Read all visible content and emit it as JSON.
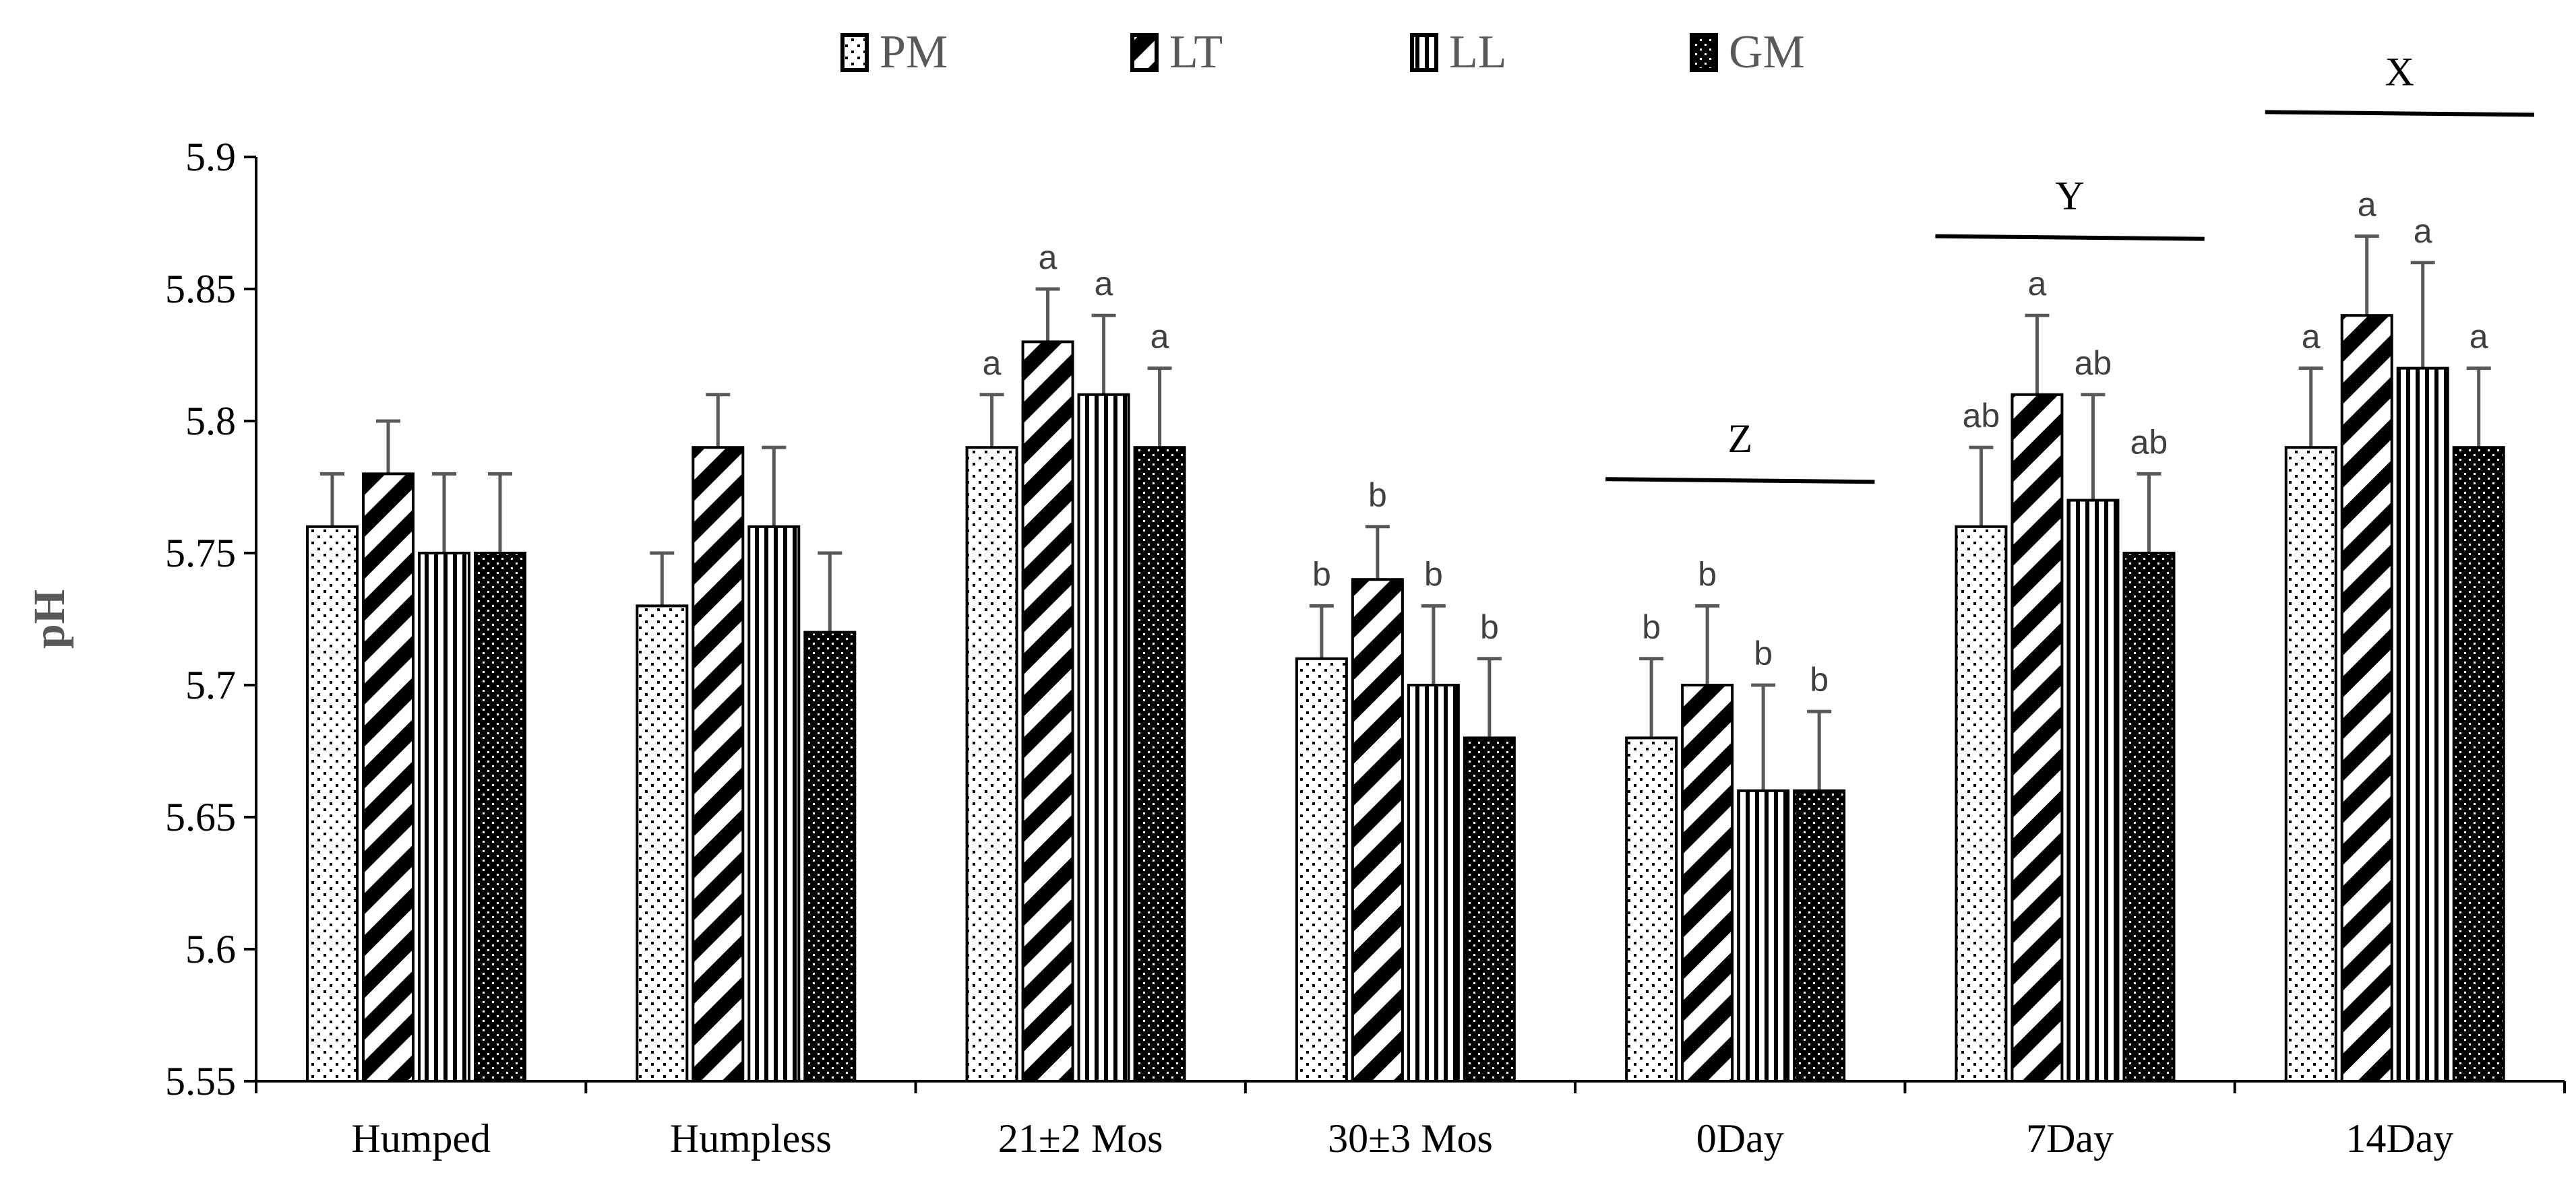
{
  "chart_data": {
    "type": "bar",
    "title": "",
    "xlabel": "",
    "ylabel": "pH",
    "ylim": [
      5.55,
      5.9
    ],
    "yticks": [
      "5.55",
      "5.6",
      "5.65",
      "5.7",
      "5.75",
      "5.8",
      "5.85",
      "5.9"
    ],
    "grid": false,
    "legend_placement": "top-center",
    "categories": [
      "Humped",
      "Humpless",
      "21±2 Mos",
      "30±3 Mos",
      "0Day",
      "7Day",
      "14Day"
    ],
    "series": [
      {
        "name": "PM",
        "pattern": "dots",
        "values": [
          5.76,
          5.73,
          5.79,
          5.71,
          5.68,
          5.76,
          5.79
        ],
        "error_upper": [
          5.78,
          5.75,
          5.81,
          5.73,
          5.71,
          5.79,
          5.82
        ],
        "letters": [
          "",
          "",
          "a",
          "b",
          "b",
          "ab",
          "a"
        ]
      },
      {
        "name": "LT",
        "pattern": "diagonal",
        "values": [
          5.78,
          5.79,
          5.83,
          5.74,
          5.7,
          5.81,
          5.84
        ],
        "error_upper": [
          5.8,
          5.81,
          5.85,
          5.76,
          5.73,
          5.84,
          5.87
        ],
        "letters": [
          "",
          "",
          "a",
          "b",
          "b",
          "a",
          "a"
        ]
      },
      {
        "name": "LL",
        "pattern": "vertical",
        "values": [
          5.75,
          5.76,
          5.81,
          5.7,
          5.66,
          5.77,
          5.82
        ],
        "error_upper": [
          5.78,
          5.79,
          5.84,
          5.73,
          5.7,
          5.81,
          5.86
        ],
        "letters": [
          "",
          "",
          "a",
          "b",
          "b",
          "ab",
          "a"
        ]
      },
      {
        "name": "GM",
        "pattern": "dense-dots",
        "values": [
          5.75,
          5.72,
          5.79,
          5.68,
          5.66,
          5.75,
          5.79
        ],
        "error_upper": [
          5.78,
          5.75,
          5.82,
          5.71,
          5.69,
          5.78,
          5.82
        ],
        "letters": [
          "",
          "",
          "a",
          "b",
          "b",
          "ab",
          "a"
        ]
      }
    ],
    "group_annotations": [
      {
        "category": "0Day",
        "label": "Z",
        "level": 5.778
      },
      {
        "category": "7Day",
        "label": "Y",
        "level": 5.87
      },
      {
        "category": "14Day",
        "label": "X",
        "level": 5.917
      }
    ]
  }
}
